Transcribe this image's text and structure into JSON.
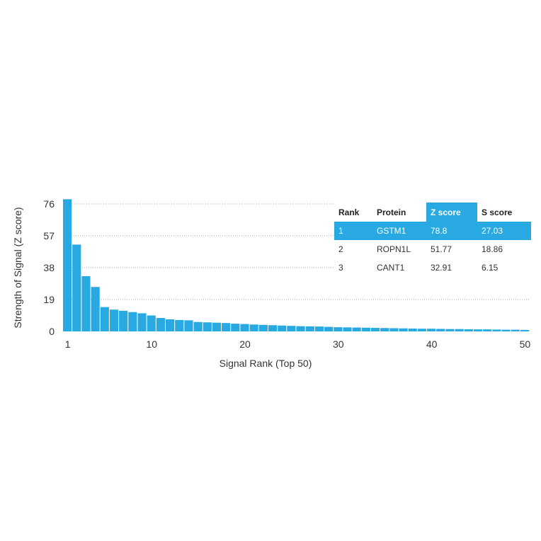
{
  "chart_data": {
    "type": "bar",
    "title": "",
    "xlabel": "Signal Rank (Top 50)",
    "ylabel": "Strength of Signal (Z score)",
    "ylim": [
      0,
      76
    ],
    "yticks": [
      0,
      19,
      38,
      57,
      76
    ],
    "xticks": [
      1,
      10,
      20,
      30,
      40,
      50
    ],
    "grid": true,
    "bar_color": "#29a9e1",
    "values": [
      78.8,
      51.77,
      32.91,
      26.5,
      14.5,
      13.0,
      12.3,
      11.5,
      10.8,
      9.5,
      8.0,
      7.2,
      6.8,
      6.6,
      5.6,
      5.4,
      5.2,
      5.0,
      4.6,
      4.4,
      4.1,
      3.9,
      3.7,
      3.5,
      3.3,
      3.1,
      3.0,
      2.9,
      2.7,
      2.5,
      2.4,
      2.3,
      2.2,
      2.1,
      2.0,
      1.9,
      1.8,
      1.7,
      1.6,
      1.6,
      1.5,
      1.4,
      1.4,
      1.3,
      1.2,
      1.2,
      1.1,
      1.0,
      1.0,
      0.9
    ]
  },
  "table": {
    "headers": [
      "Rank",
      "Protein",
      "Z score",
      "S score"
    ],
    "rows": [
      [
        "1",
        "GSTM1",
        "78.8",
        "27.03"
      ],
      [
        "2",
        "ROPN1L",
        "51.77",
        "18.86"
      ],
      [
        "3",
        "CANT1",
        "32.91",
        "6.15"
      ]
    ]
  }
}
